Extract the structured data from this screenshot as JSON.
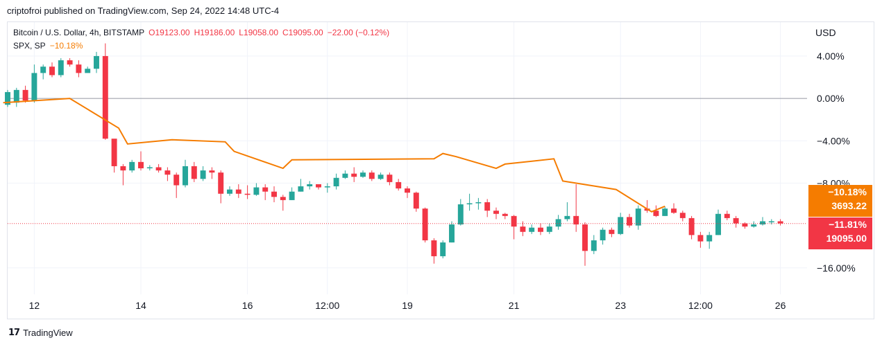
{
  "header": {
    "published": "criptofroi published on TradingView.com, Sep 24, 2022 14:48 UTC-4"
  },
  "legend": {
    "symbol": "Bitcoin / U.S. Dollar, 4h, BITSTAMP",
    "open": "O19123.00",
    "high": "H19186.00",
    "low": "L19058.00",
    "close": "C19095.00",
    "change": "−22.00 (−0.12%)",
    "compare_symbol": "SPX, SP",
    "compare_change": "−10.18%"
  },
  "badges": {
    "spx_pct": "−10.18%",
    "spx_price": "3693.22",
    "btc_pct": "−11.81%",
    "btc_price": "19095.00"
  },
  "footer": {
    "brand": "TradingView"
  },
  "colors": {
    "up": "#26a69a",
    "down": "#f23645",
    "compare": "#f57c00",
    "grid": "#f0f3fa",
    "zero": "#9598a1"
  },
  "chart_data": {
    "type": "candlestick",
    "currency_label": "USD",
    "y_unit": "percent",
    "ylim": [
      -18.5,
      7.2
    ],
    "xlim": [
      0,
      90
    ],
    "y_ticks": [
      4,
      0,
      -4,
      -8,
      -16
    ],
    "y_tick_labels": [
      "4.00%",
      "0.00%",
      "−4.00%",
      "−8.00%",
      "−16.00%"
    ],
    "x_ticks": [
      3,
      15,
      27,
      36,
      45,
      57,
      69,
      78,
      87
    ],
    "x_tick_labels": [
      "12",
      "14",
      "16",
      "12:00",
      "19",
      "21",
      "23",
      "12:00",
      "26"
    ],
    "candles": [
      [
        -0.6,
        0.6,
        -0.8,
        0.8
      ],
      [
        -0.4,
        0.8,
        -0.8,
        1.0
      ],
      [
        0.8,
        -0.2,
        -0.4,
        1.2
      ],
      [
        -0.2,
        2.4,
        -0.4,
        3.2
      ],
      [
        2.4,
        3.0,
        1.8,
        3.2
      ],
      [
        3.0,
        2.2,
        2.0,
        3.4
      ],
      [
        2.2,
        3.6,
        2.0,
        3.8
      ],
      [
        3.6,
        3.2,
        3.0,
        3.8
      ],
      [
        3.2,
        2.4,
        2.0,
        3.6
      ],
      [
        2.4,
        2.8,
        2.6,
        3.0
      ],
      [
        2.8,
        4.0,
        2.4,
        4.4
      ],
      [
        4.0,
        -3.8,
        -3.9,
        5.2
      ],
      [
        -3.8,
        -6.4,
        -7.0,
        -4.0
      ],
      [
        -6.4,
        -6.8,
        -8.2,
        -6.2
      ],
      [
        -6.8,
        -6.0,
        -7.0,
        -5.8
      ],
      [
        -6.0,
        -6.6,
        -6.8,
        -5.0
      ],
      [
        -6.6,
        -6.5,
        -6.8,
        -6.3
      ],
      [
        -6.5,
        -6.8,
        -7.0,
        -6.2
      ],
      [
        -6.8,
        -7.2,
        -7.8,
        -6.5
      ],
      [
        -7.2,
        -8.2,
        -9.4,
        -7.0
      ],
      [
        -8.2,
        -6.4,
        -8.4,
        -5.8
      ],
      [
        -6.4,
        -7.6,
        -7.9,
        -6.0
      ],
      [
        -7.6,
        -6.8,
        -7.8,
        -6.4
      ],
      [
        -6.8,
        -7.0,
        -7.6,
        -6.5
      ],
      [
        -7.0,
        -9.0,
        -9.9,
        -6.8
      ],
      [
        -9.0,
        -8.6,
        -9.2,
        -8.3
      ],
      [
        -8.6,
        -9.0,
        -9.4,
        -8.1
      ],
      [
        -9.0,
        -9.1,
        -9.5,
        -8.2
      ],
      [
        -9.1,
        -8.4,
        -9.2,
        -8.0
      ],
      [
        -8.4,
        -8.8,
        -9.6,
        -8.1
      ],
      [
        -8.8,
        -9.3,
        -9.8,
        -8.3
      ],
      [
        -9.3,
        -9.6,
        -10.6,
        -9.1
      ],
      [
        -9.6,
        -8.8,
        -9.6,
        -8.4
      ],
      [
        -8.8,
        -8.3,
        -8.8,
        -7.6
      ],
      [
        -8.3,
        -8.1,
        -8.6,
        -7.8
      ],
      [
        -8.1,
        -8.4,
        -8.6,
        -8.1
      ],
      [
        -8.4,
        -8.3,
        -8.9,
        -8.0
      ],
      [
        -8.3,
        -7.5,
        -8.6,
        -7.1
      ],
      [
        -7.5,
        -7.1,
        -7.6,
        -6.8
      ],
      [
        -7.1,
        -7.4,
        -7.9,
        -6.5
      ],
      [
        -7.4,
        -7.0,
        -7.5,
        -6.8
      ],
      [
        -7.0,
        -7.6,
        -7.8,
        -6.8
      ],
      [
        -7.6,
        -7.2,
        -7.7,
        -7.0
      ],
      [
        -7.2,
        -7.9,
        -8.2,
        -7.0
      ],
      [
        -7.9,
        -8.5,
        -8.7,
        -7.6
      ],
      [
        -8.5,
        -8.9,
        -9.4,
        -8.3
      ],
      [
        -8.9,
        -10.4,
        -10.7,
        -8.8
      ],
      [
        -10.4,
        -13.4,
        -13.6,
        -10.3
      ],
      [
        -13.4,
        -14.9,
        -15.6,
        -13.2
      ],
      [
        -14.9,
        -13.6,
        -15.1,
        -13.4
      ],
      [
        -13.6,
        -11.9,
        -13.6,
        -11.6
      ],
      [
        -11.9,
        -10.0,
        -12.0,
        -9.5
      ],
      [
        -10.0,
        -9.9,
        -10.6,
        -9.0
      ],
      [
        -9.9,
        -9.8,
        -10.5,
        -9.4
      ],
      [
        -9.8,
        -10.6,
        -11.2,
        -9.5
      ],
      [
        -10.6,
        -10.9,
        -11.4,
        -10.3
      ],
      [
        -10.9,
        -11.1,
        -11.4,
        -10.8
      ],
      [
        -11.1,
        -12.1,
        -13.3,
        -11.0
      ],
      [
        -12.1,
        -12.6,
        -13.0,
        -11.6
      ],
      [
        -12.6,
        -12.2,
        -12.8,
        -11.9
      ],
      [
        -12.2,
        -12.6,
        -12.9,
        -11.8
      ],
      [
        -12.6,
        -12.1,
        -12.8,
        -11.8
      ],
      [
        -12.1,
        -11.4,
        -12.4,
        -11.0
      ],
      [
        -11.4,
        -11.1,
        -11.6,
        -9.8
      ],
      [
        -11.1,
        -11.9,
        -12.6,
        -8.1
      ],
      [
        -11.9,
        -14.4,
        -15.8,
        -11.7
      ],
      [
        -14.4,
        -13.4,
        -14.7,
        -12.9
      ],
      [
        -13.4,
        -12.4,
        -13.8,
        -12.2
      ],
      [
        -12.4,
        -12.8,
        -13.1,
        -12.2
      ],
      [
        -12.8,
        -11.2,
        -12.9,
        -10.8
      ],
      [
        -11.2,
        -12.0,
        -12.2,
        -10.9
      ],
      [
        -12.0,
        -10.4,
        -12.4,
        -10.1
      ],
      [
        -10.4,
        -10.6,
        -10.8,
        -9.6
      ],
      [
        -10.6,
        -11.1,
        -11.2,
        -10.1
      ],
      [
        -11.1,
        -10.4,
        -11.1,
        -10.2
      ],
      [
        -10.4,
        -10.8,
        -10.9,
        -9.9
      ],
      [
        -10.8,
        -11.3,
        -11.6,
        -10.6
      ],
      [
        -11.3,
        -12.9,
        -13.3,
        -11.1
      ],
      [
        -12.9,
        -13.5,
        -14.1,
        -12.6
      ],
      [
        -13.5,
        -12.9,
        -14.2,
        -12.6
      ],
      [
        -12.9,
        -10.9,
        -12.9,
        -10.5
      ],
      [
        -10.9,
        -11.3,
        -11.5,
        -10.6
      ],
      [
        -11.3,
        -11.8,
        -12.2,
        -11.1
      ],
      [
        -11.8,
        -12.1,
        -12.3,
        -11.7
      ],
      [
        -12.1,
        -11.9,
        -12.2,
        -11.6
      ],
      [
        -11.9,
        -11.6,
        -12.0,
        -11.2
      ],
      [
        -11.6,
        -11.6,
        -11.9,
        -11.4
      ],
      [
        -11.6,
        -11.81,
        -12.0,
        -11.4
      ]
    ],
    "compare_series": {
      "name": "SPX, SP",
      "x": [
        -0.5,
        7,
        12.5,
        13.5,
        18.5,
        24.5,
        25.5,
        31,
        32,
        48,
        49,
        50.5,
        55,
        56,
        61.5,
        62.5,
        68.5,
        72.5,
        74
      ],
      "y": [
        -0.4,
        0.0,
        -2.8,
        -4.3,
        -3.9,
        -4.1,
        -5.0,
        -6.6,
        -5.8,
        -5.7,
        -5.2,
        -5.5,
        -6.6,
        -6.2,
        -5.7,
        -7.8,
        -8.6,
        -10.7,
        -10.18
      ]
    }
  }
}
